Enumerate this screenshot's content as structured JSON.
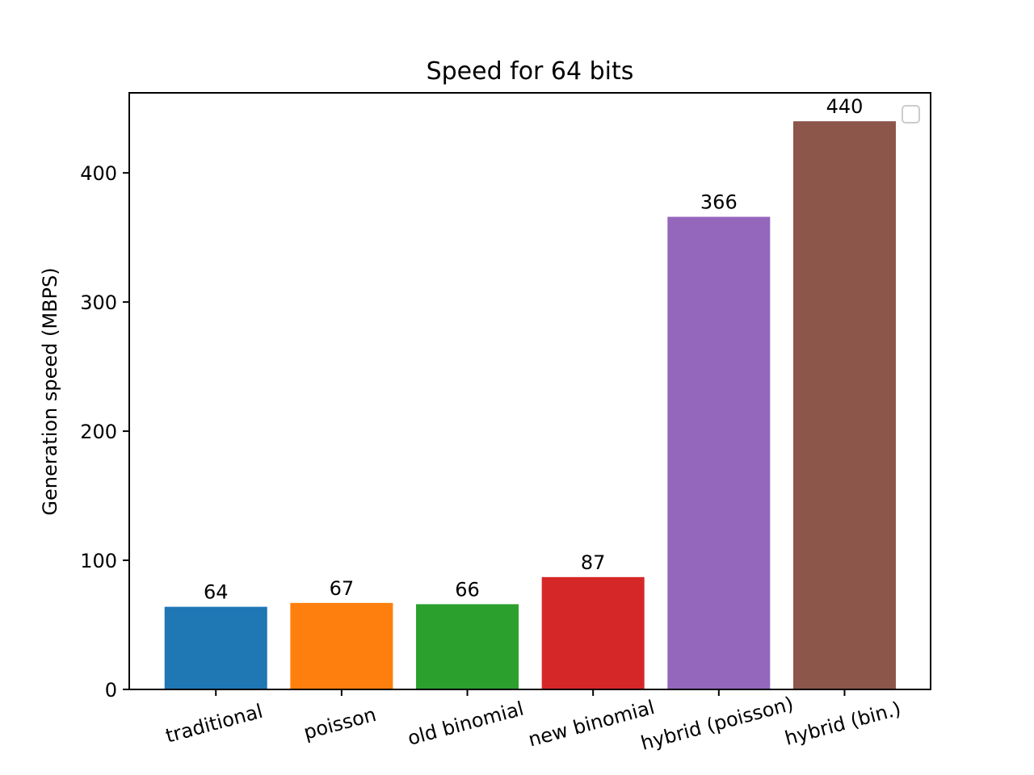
{
  "chart_data": {
    "type": "bar",
    "title": "Speed for 64 bits",
    "xlabel": "",
    "ylabel": "Generation speed (MBPS)",
    "categories": [
      "traditional",
      "poisson",
      "old binomial",
      "new binomial",
      "hybrid (poisson)",
      "hybrid (bin.)"
    ],
    "values": [
      64,
      67,
      66,
      87,
      366,
      440
    ],
    "value_labels": [
      "64",
      "67",
      "66",
      "87",
      "366",
      "440"
    ],
    "colors": [
      "#1f77b4",
      "#ff7f0e",
      "#2ca02c",
      "#d62728",
      "#9467bd",
      "#8c564b"
    ],
    "ylim": [
      0,
      462
    ],
    "yticks": [
      0,
      100,
      200,
      300,
      400
    ],
    "ytick_labels": [
      "0",
      "100",
      "200",
      "300",
      "400"
    ],
    "x_tick_rotation": 15,
    "grid": false,
    "legend": {
      "placement": "upper right",
      "entries": []
    }
  }
}
